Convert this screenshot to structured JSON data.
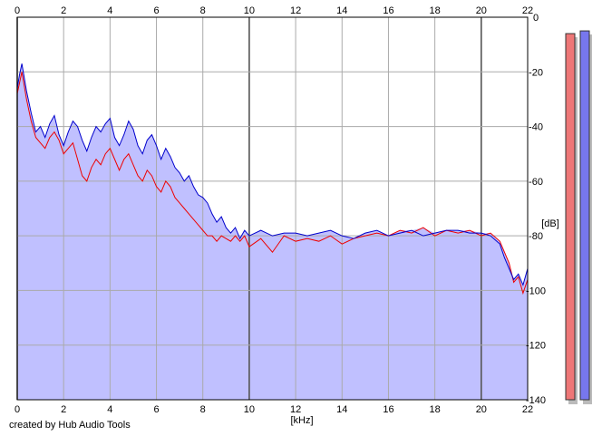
{
  "footer": {
    "credit": "created by Hub Audio Tools"
  },
  "chart_data": {
    "type": "area",
    "xlabel": "[kHz]",
    "ylabel": "[dB]",
    "xlim": [
      0,
      22
    ],
    "ylim": [
      -140,
      0
    ],
    "x_ticks": [
      "0",
      "2",
      "4",
      "6",
      "8",
      "10",
      "12",
      "14",
      "16",
      "18",
      "20",
      "22"
    ],
    "y_ticks": [
      "0",
      "-20",
      "-40",
      "-60",
      "-80",
      "-100",
      "-120",
      "-140"
    ],
    "grid": true,
    "fill_color": "#c0c0ff",
    "series": [
      {
        "color": "#0000cc",
        "x": [
          0,
          0.1,
          0.2,
          0.4,
          0.6,
          0.8,
          1,
          1.2,
          1.4,
          1.6,
          1.8,
          2,
          2.2,
          2.4,
          2.6,
          2.8,
          3,
          3.2,
          3.4,
          3.6,
          3.8,
          4,
          4.2,
          4.4,
          4.6,
          4.8,
          5,
          5.2,
          5.4,
          5.6,
          5.8,
          6,
          6.2,
          6.4,
          6.6,
          6.8,
          7,
          7.2,
          7.4,
          7.6,
          7.8,
          8,
          8.2,
          8.4,
          8.6,
          8.8,
          9,
          9.2,
          9.4,
          9.6,
          9.8,
          10,
          10.5,
          11,
          11.5,
          12,
          12.5,
          13,
          13.5,
          14,
          14.5,
          15,
          15.5,
          16,
          16.5,
          17,
          17.5,
          18,
          18.5,
          19,
          19.5,
          20,
          20.4,
          20.8,
          21,
          21.2,
          21.4,
          21.6,
          21.8,
          22
        ],
        "values": [
          -26,
          -21,
          -17,
          -27,
          -35,
          -42,
          -40,
          -44,
          -39,
          -36,
          -43,
          -47,
          -42,
          -38,
          -40,
          -45,
          -49,
          -44,
          -40,
          -42,
          -39,
          -37,
          -44,
          -47,
          -43,
          -38,
          -41,
          -47,
          -50,
          -45,
          -43,
          -47,
          -52,
          -48,
          -51,
          -55,
          -57,
          -60,
          -58,
          -62,
          -65,
          -66,
          -68,
          -72,
          -75,
          -73,
          -77,
          -79,
          -77,
          -81,
          -78,
          -80,
          -78,
          -80,
          -79,
          -79,
          -80,
          -79,
          -78,
          -80,
          -81,
          -79,
          -78,
          -80,
          -79,
          -78,
          -80,
          -79,
          -78,
          -78,
          -79,
          -79,
          -80,
          -83,
          -88,
          -92,
          -96,
          -94,
          -98,
          -92
        ]
      },
      {
        "color": "#ee0000",
        "x": [
          0,
          0.1,
          0.2,
          0.4,
          0.6,
          0.8,
          1,
          1.2,
          1.4,
          1.6,
          1.8,
          2,
          2.2,
          2.4,
          2.6,
          2.8,
          3,
          3.2,
          3.4,
          3.6,
          3.8,
          4,
          4.2,
          4.4,
          4.6,
          4.8,
          5,
          5.2,
          5.4,
          5.6,
          5.8,
          6,
          6.2,
          6.4,
          6.6,
          6.8,
          7,
          7.2,
          7.4,
          7.6,
          7.8,
          8,
          8.2,
          8.4,
          8.6,
          8.8,
          9,
          9.2,
          9.4,
          9.6,
          9.8,
          10,
          10.5,
          11,
          11.5,
          12,
          12.5,
          13,
          13.5,
          14,
          14.5,
          15,
          15.5,
          16,
          16.5,
          17,
          17.5,
          18,
          18.5,
          19,
          19.5,
          20,
          20.4,
          20.8,
          21,
          21.2,
          21.4,
          21.6,
          21.8,
          22
        ],
        "values": [
          -28,
          -24,
          -20,
          -30,
          -38,
          -44,
          -46,
          -48,
          -44,
          -42,
          -45,
          -50,
          -48,
          -46,
          -52,
          -58,
          -60,
          -55,
          -52,
          -54,
          -50,
          -48,
          -52,
          -56,
          -52,
          -50,
          -54,
          -58,
          -60,
          -56,
          -58,
          -62,
          -64,
          -60,
          -62,
          -66,
          -68,
          -70,
          -72,
          -74,
          -76,
          -78,
          -80,
          -80,
          -82,
          -80,
          -81,
          -82,
          -80,
          -82,
          -80,
          -84,
          -81,
          -86,
          -80,
          -82,
          -81,
          -82,
          -80,
          -83,
          -81,
          -80,
          -79,
          -80,
          -78,
          -79,
          -77,
          -80,
          -78,
          -79,
          -78,
          -80,
          -79,
          -82,
          -86,
          -90,
          -97,
          -95,
          -101,
          -96
        ]
      }
    ],
    "level_meters": [
      {
        "color": "#ee7777",
        "level": -6
      },
      {
        "color": "#7777ee",
        "level": -5
      }
    ]
  }
}
